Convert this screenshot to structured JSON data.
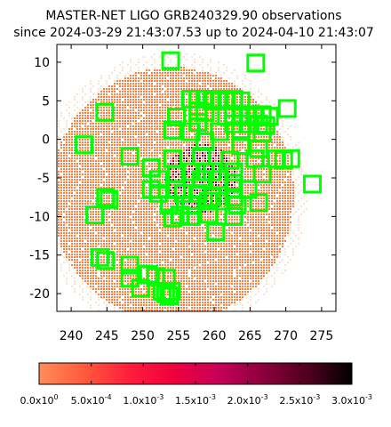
{
  "chart_data": {
    "type": "scatter",
    "title_line1": "MASTER-NET LIGO GRB240329.90 observations",
    "title_line2": "since 2024-03-29 21:43:07.53 up to 2024-04-10 21:43:07",
    "xlim": [
      238,
      277
    ],
    "ylim": [
      -22.3,
      12.3
    ],
    "x_ticks": [
      "240",
      "245",
      "250",
      "255",
      "260",
      "265",
      "270",
      "275"
    ],
    "x_tick_values": [
      240,
      245,
      250,
      255,
      260,
      265,
      270,
      275
    ],
    "y_ticks": [
      "10",
      "5",
      "0",
      "-5",
      "-10",
      "-15",
      "-20"
    ],
    "y_tick_values": [
      10,
      5,
      0,
      -5,
      -10,
      -15,
      -20
    ],
    "grid": false,
    "probability_region": {
      "center": [
        254.0,
        -7.0
      ],
      "radii": [
        17.0,
        16.5
      ],
      "color": "#ff7f3f",
      "hot_core_center": [
        258.0,
        -5.0
      ]
    },
    "field_marker_color": "#00ff00",
    "fields": [
      [
        253.9,
        10.2
      ],
      [
        265.8,
        9.9
      ],
      [
        244.7,
        3.5
      ],
      [
        254.7,
        2.9
      ],
      [
        256.7,
        5.2
      ],
      [
        257.7,
        5.2
      ],
      [
        258.7,
        5.2
      ],
      [
        259.7,
        5.0
      ],
      [
        260.7,
        5.2
      ],
      [
        261.7,
        5.0
      ],
      [
        262.7,
        5.2
      ],
      [
        263.7,
        5.0
      ],
      [
        257.7,
        3.7
      ],
      [
        258.7,
        3.5
      ],
      [
        261.7,
        3.0
      ],
      [
        262.7,
        3.2
      ],
      [
        263.7,
        3.0
      ],
      [
        264.7,
        3.2
      ],
      [
        265.7,
        3.0
      ],
      [
        266.7,
        3.2
      ],
      [
        267.7,
        3.0
      ],
      [
        270.2,
        4.0
      ],
      [
        257.7,
        2.2
      ],
      [
        262.7,
        2.0
      ],
      [
        264.7,
        2.0
      ],
      [
        266.2,
        2.0
      ],
      [
        267.2,
        1.8
      ],
      [
        254.2,
        1.2
      ],
      [
        256.7,
        1.0
      ],
      [
        260.7,
        1.0
      ],
      [
        263.7,
        1.0
      ],
      [
        266.7,
        0.8
      ],
      [
        241.8,
        -0.7
      ],
      [
        258.7,
        -0.3
      ],
      [
        263.7,
        -0.8
      ],
      [
        266.2,
        -1.2
      ],
      [
        248.2,
        -2.2
      ],
      [
        254.2,
        -2.5
      ],
      [
        258.2,
        -2.2
      ],
      [
        262.2,
        -2.7
      ],
      [
        265.7,
        -2.5
      ],
      [
        268.7,
        -2.5
      ],
      [
        269.7,
        -2.7
      ],
      [
        270.7,
        -2.5
      ],
      [
        251.2,
        -3.7
      ],
      [
        254.7,
        -4.5
      ],
      [
        256.7,
        -4.2
      ],
      [
        258.7,
        -4.2
      ],
      [
        259.7,
        -4.2
      ],
      [
        262.7,
        -4.2
      ],
      [
        266.7,
        -4.5
      ],
      [
        252.2,
        -5.2
      ],
      [
        258.2,
        -5.2
      ],
      [
        260.7,
        -5.2
      ],
      [
        262.7,
        -5.7
      ],
      [
        244.8,
        -7.5
      ],
      [
        245.3,
        -7.8
      ],
      [
        251.2,
        -6.5
      ],
      [
        252.2,
        -7.0
      ],
      [
        254.7,
        -6.5
      ],
      [
        255.7,
        -7.0
      ],
      [
        257.7,
        -7.0
      ],
      [
        259.7,
        -7.5
      ],
      [
        262.7,
        -7.5
      ],
      [
        264.7,
        -6.5
      ],
      [
        273.7,
        -5.8
      ],
      [
        253.7,
        -8.5
      ],
      [
        256.7,
        -8.5
      ],
      [
        259.2,
        -8.0
      ],
      [
        260.7,
        -8.0
      ],
      [
        263.2,
        -8.5
      ],
      [
        266.2,
        -8.2
      ],
      [
        243.3,
        -9.8
      ],
      [
        254.2,
        -10.2
      ],
      [
        255.2,
        -9.8
      ],
      [
        256.7,
        -10.0
      ],
      [
        259.2,
        -9.7
      ],
      [
        262.7,
        -10.0
      ],
      [
        260.2,
        -12.0
      ],
      [
        244.0,
        -15.3
      ],
      [
        244.8,
        -15.7
      ],
      [
        248.2,
        -16.3
      ],
      [
        248.2,
        -18.0
      ],
      [
        250.8,
        -17.5
      ],
      [
        251.8,
        -17.8
      ],
      [
        253.3,
        -18.0
      ],
      [
        249.7,
        -19.3
      ],
      [
        252.7,
        -19.7
      ],
      [
        253.2,
        -20.0
      ],
      [
        254.0,
        -19.7
      ],
      [
        253.7,
        -20.3
      ]
    ],
    "colorbar": {
      "range": [
        0.0,
        0.003
      ],
      "stops": [
        "#ff8c5a",
        "#ff5a3c",
        "#ff1e3c",
        "#f0003c",
        "#c8005a",
        "#8c003c",
        "#50001e",
        "#000000"
      ],
      "tick_labels": [
        "0.0x10",
        "5.0x10",
        "1.0x10",
        "1.5x10",
        "2.0x10",
        "2.5x10",
        "3.0x10"
      ],
      "tick_exponents": [
        "0",
        "-4",
        "-3",
        "-3",
        "-3",
        "-3",
        "-3"
      ]
    }
  }
}
